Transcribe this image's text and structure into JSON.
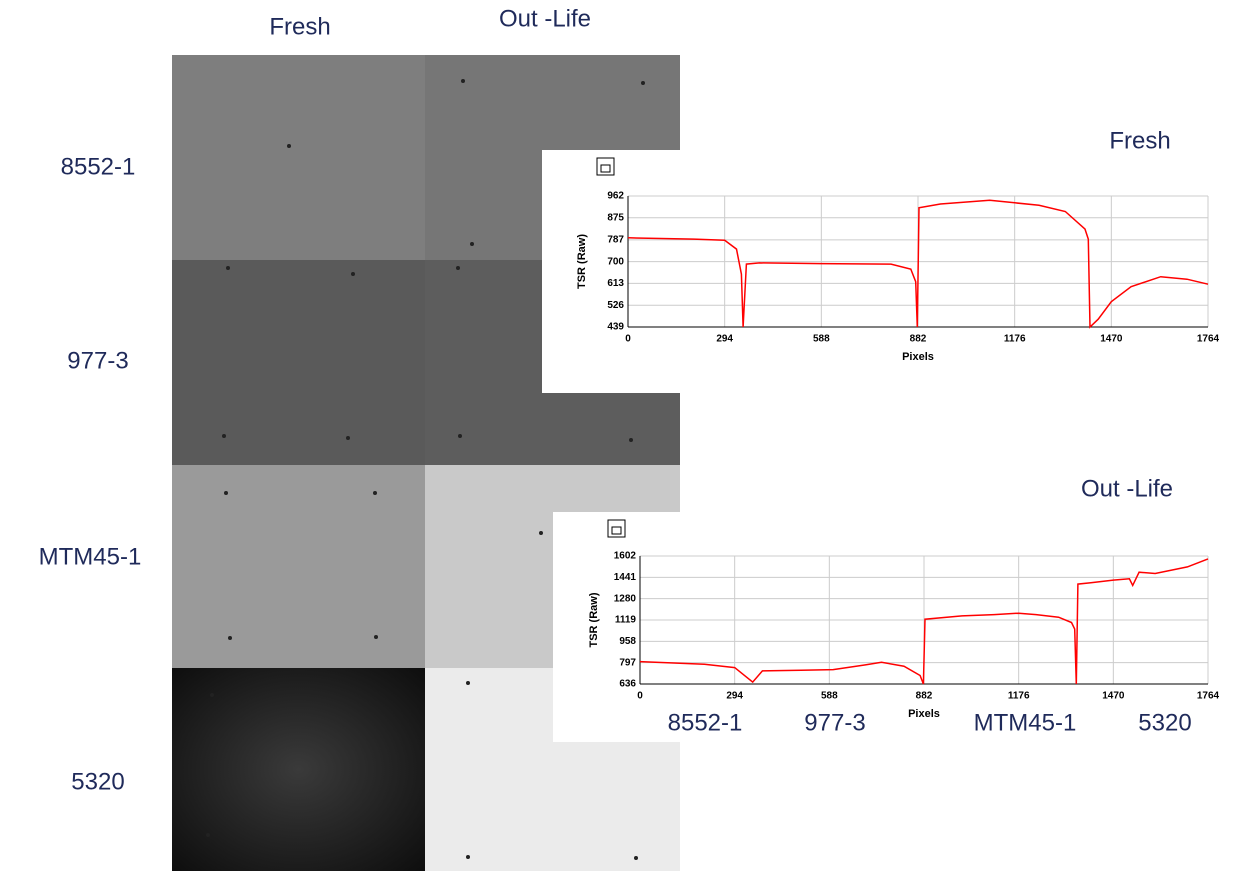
{
  "column_headers": [
    "Fresh",
    "Out -Life"
  ],
  "row_labels": [
    "8552-1",
    "977-3",
    "MTM45-1",
    "5320"
  ],
  "chart_data": [
    {
      "type": "line",
      "title": "Fresh",
      "y_label": "TSR (Raw)",
      "x_label": "Pixels",
      "x": [
        0,
        200,
        294,
        330,
        345,
        350,
        360,
        400,
        588,
        800,
        860,
        875,
        880,
        885,
        950,
        1100,
        1176,
        1250,
        1330,
        1390,
        1400,
        1405,
        1430,
        1470,
        1530,
        1620,
        1700,
        1764
      ],
      "series": [
        {
          "name": "TSR",
          "color": "#ff0000",
          "values": [
            795,
            790,
            785,
            750,
            650,
            439,
            690,
            695,
            692,
            690,
            670,
            620,
            439,
            915,
            930,
            945,
            935,
            925,
            900,
            830,
            790,
            439,
            470,
            540,
            600,
            640,
            630,
            610
          ]
        }
      ],
      "xlim": [
        0,
        1764
      ],
      "xticks": [
        0,
        294,
        588,
        882,
        1176,
        1470,
        1764
      ],
      "ylim": [
        439,
        962
      ],
      "yticks": [
        439,
        526,
        613,
        700,
        787,
        875,
        962
      ],
      "grid": true
    },
    {
      "type": "line",
      "title": "Out -Life",
      "y_label": "TSR (Raw)",
      "x_label": "Pixels",
      "x": [
        0,
        200,
        294,
        350,
        380,
        500,
        600,
        700,
        750,
        820,
        870,
        880,
        885,
        1000,
        1100,
        1176,
        1230,
        1300,
        1340,
        1350,
        1355,
        1360,
        1400,
        1470,
        1520,
        1530,
        1550,
        1600,
        1700,
        1764
      ],
      "series": [
        {
          "name": "TSR",
          "color": "#ff0000",
          "values": [
            805,
            785,
            760,
            650,
            735,
            740,
            745,
            780,
            800,
            770,
            700,
            636,
            1125,
            1150,
            1160,
            1170,
            1160,
            1140,
            1100,
            1050,
            636,
            1390,
            1400,
            1420,
            1430,
            1380,
            1480,
            1470,
            1520,
            1580
          ]
        }
      ],
      "xlim": [
        0,
        1764
      ],
      "xticks": [
        0,
        294,
        588,
        882,
        1176,
        1470,
        1764
      ],
      "ylim": [
        636,
        1602
      ],
      "yticks": [
        636,
        797,
        958,
        1119,
        1280,
        1441,
        1602
      ],
      "grid": true,
      "annotations": [
        "8552-1",
        "977-3",
        "MTM45-1",
        "5320"
      ]
    }
  ]
}
